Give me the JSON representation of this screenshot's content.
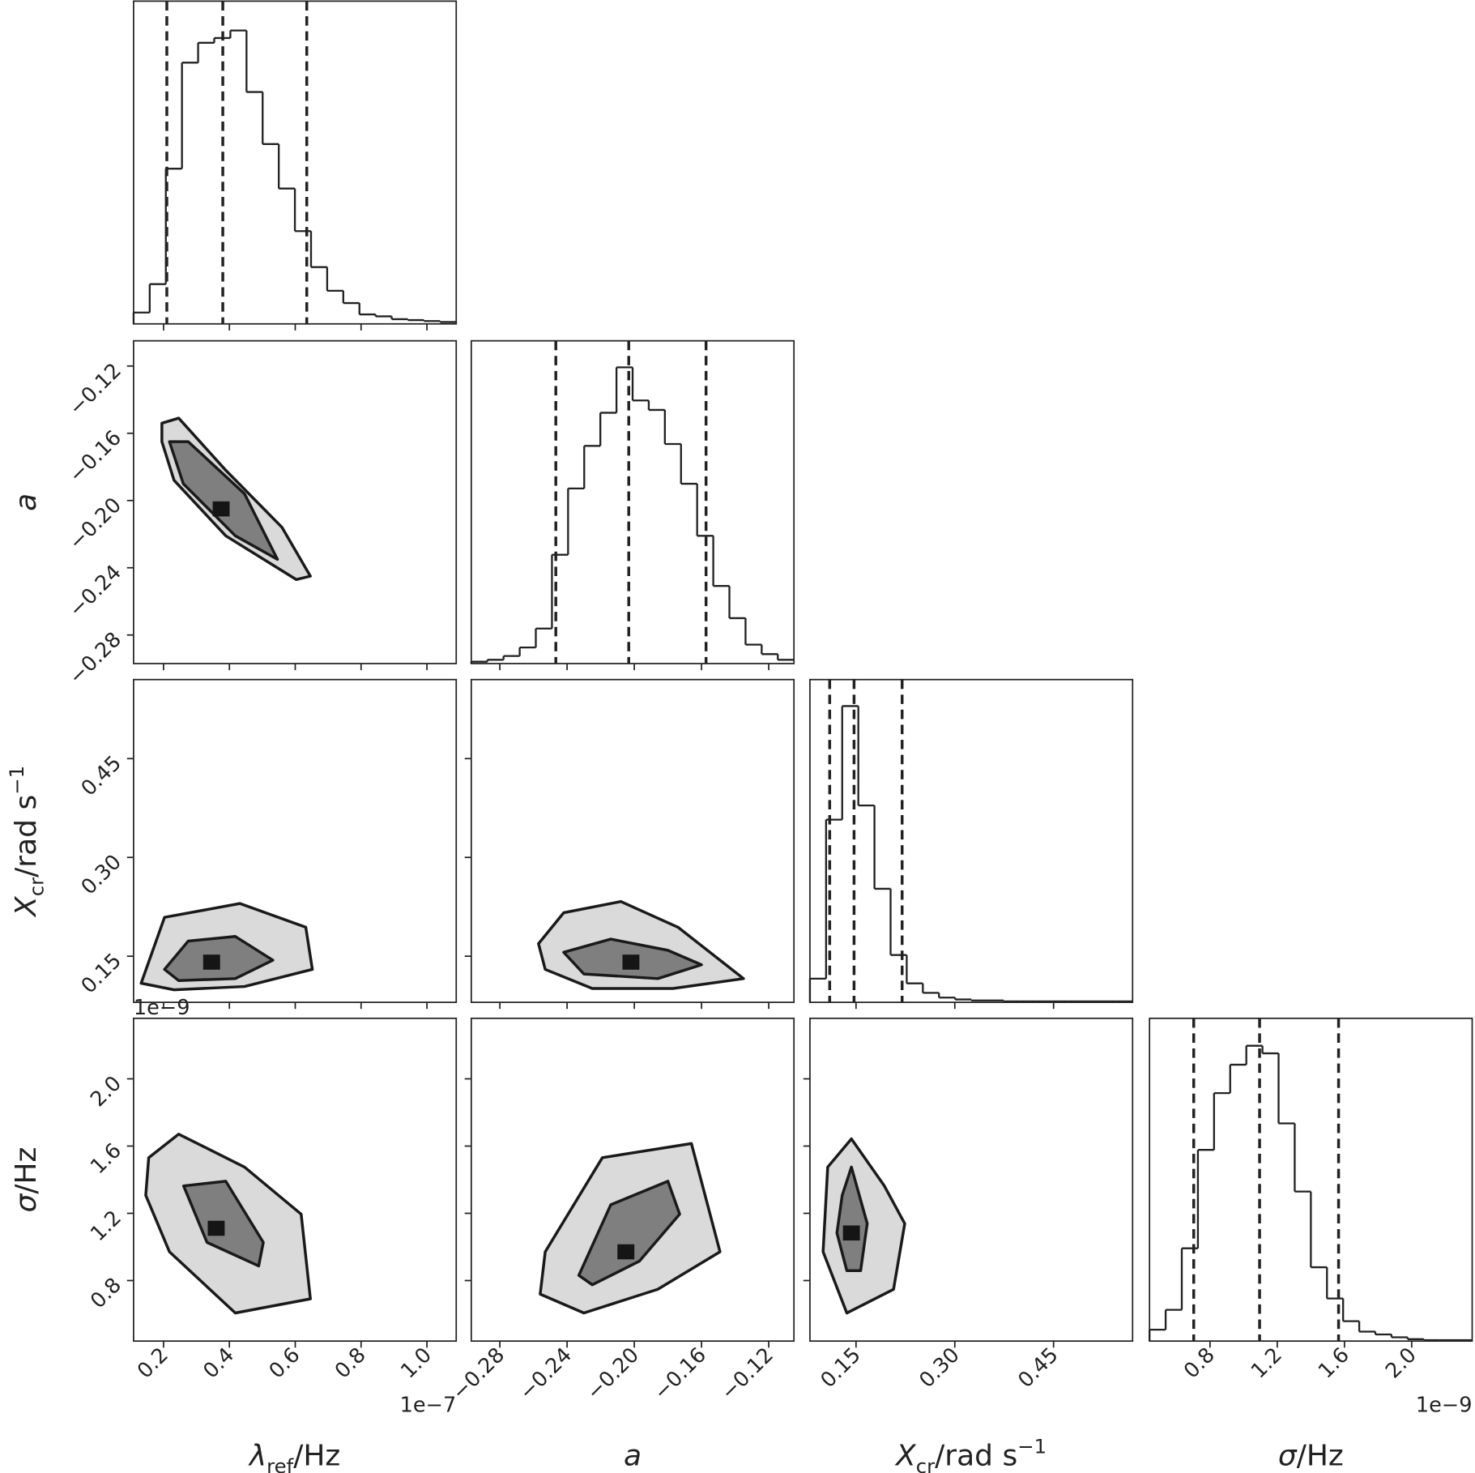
{
  "chart_data": {
    "type": "corner",
    "hist_ylim": [
      0,
      341
    ],
    "parameters": [
      {
        "symbol": "λ",
        "sub": "ref",
        "unit": "/Hz",
        "offset": "1e−7",
        "lim": [
          0.109,
          1.089
        ],
        "ticks": [
          0.2,
          0.4,
          0.6,
          0.8,
          {
            "value": 1,
            "label": "1.0"
          }
        ],
        "bins": [
          0.109,
          0.158,
          0.207,
          0.256,
          0.305,
          0.354,
          0.403,
          0.452,
          0.501,
          0.55,
          0.599,
          0.648,
          0.697,
          0.746,
          0.795,
          0.844,
          0.893,
          0.942,
          0.991,
          1.04,
          1.089
        ],
        "counts": [
          12,
          42,
          164,
          276,
          297,
          302,
          310,
          245,
          190,
          143,
          98,
          60,
          35,
          22,
          10,
          8,
          5,
          4,
          3,
          2
        ],
        "quantiles": [
          0.21,
          0.38,
          0.635
        ]
      },
      {
        "symbol": "a",
        "lim": [
          -0.297,
          -0.105
        ],
        "ticks": [
          {
            "value": -0.28,
            "label": "−0.28"
          },
          {
            "value": -0.24,
            "label": "−0.24"
          },
          {
            "value": -0.2,
            "label": "−0.20"
          },
          {
            "value": -0.16,
            "label": "−0.16"
          },
          {
            "value": -0.12,
            "label": "−0.12"
          }
        ],
        "bins": [
          -0.297,
          -0.2874,
          -0.2778,
          -0.2682,
          -0.2586,
          -0.249,
          -0.2394,
          -0.2298,
          -0.2202,
          -0.2106,
          -0.201,
          -0.1914,
          -0.1818,
          -0.1722,
          -0.1626,
          -0.153,
          -0.1434,
          -0.1338,
          -0.1242,
          -0.1146,
          -0.105
        ],
        "counts": [
          2,
          4,
          8,
          17,
          37,
          115,
          185,
          230,
          265,
          313,
          278,
          268,
          232,
          190,
          135,
          82,
          48,
          20,
          10,
          4
        ],
        "quantiles": [
          -0.2467,
          -0.2033,
          -0.1573
        ]
      },
      {
        "symbol": "X",
        "sub": "cr",
        "unit": "/rad s",
        "sup": "−1",
        "lim": [
          0.08,
          0.57
        ],
        "ticks": [
          0.15,
          {
            "value": 0.3,
            "label": "0.30"
          },
          0.45
        ],
        "bins": [
          0.08,
          0.1045,
          0.129,
          0.1535,
          0.178,
          0.2025,
          0.227,
          0.2515,
          0.276,
          0.3005,
          0.325,
          0.3495,
          0.374,
          0.3985,
          0.423,
          0.4475,
          0.472,
          0.4965,
          0.521,
          0.5455,
          0.57
        ],
        "counts": [
          25,
          193,
          313,
          208,
          120,
          50,
          20,
          10,
          5,
          3,
          2,
          2,
          1,
          1,
          1,
          1,
          1,
          1,
          1,
          1
        ],
        "quantiles": [
          0.11,
          0.147,
          0.22
        ]
      },
      {
        "symbol": "σ",
        "unit": "/Hz",
        "offset": "1e−9",
        "lim": [
          0.44,
          2.36
        ],
        "ticks": [
          0.8,
          1.2,
          1.6,
          {
            "value": 2,
            "label": "2.0"
          }
        ],
        "bins": [
          0.44,
          0.536,
          0.632,
          0.728,
          0.824,
          0.92,
          1.016,
          1.112,
          1.208,
          1.304,
          1.4,
          1.496,
          1.592,
          1.688,
          1.784,
          1.88,
          1.976,
          2.072,
          2.168,
          2.264,
          2.36
        ],
        "counts": [
          12,
          33,
          98,
          202,
          262,
          292,
          312,
          304,
          230,
          158,
          78,
          45,
          21,
          10,
          7,
          4,
          2,
          1,
          1,
          1
        ],
        "quantiles": [
          0.703,
          1.095,
          1.565
        ]
      }
    ],
    "pairs": [
      {
        "contours": [
          {
            "x": [
              0.195,
              0.246,
              0.389,
              0.56,
              0.646,
              0.603,
              0.389,
              0.232,
              0.195
            ],
            "y": [
              -0.154,
              -0.151,
              -0.182,
              -0.216,
              -0.245,
              -0.247,
              -0.221,
              -0.188,
              -0.165
            ]
          },
          {
            "x": [
              0.218,
              0.275,
              0.446,
              0.546,
              0.418,
              0.26
            ],
            "y": [
              -0.165,
              -0.165,
              -0.196,
              -0.235,
              -0.221,
              -0.19
            ]
          }
        ],
        "mode": {
          "x": 0.375,
          "y": -0.205
        }
      },
      {
        "contours": [
          {
            "x": [
              0.132,
              0.203,
              0.432,
              0.632,
              0.652,
              0.446,
              0.232
            ],
            "y": [
              0.109,
              0.209,
              0.23,
              0.194,
              0.13,
              0.104,
              0.099
            ]
          },
          {
            "x": [
              0.203,
              0.275,
              0.418,
              0.532,
              0.418,
              0.246
            ],
            "y": [
              0.13,
              0.173,
              0.18,
              0.144,
              0.116,
              0.113
            ]
          }
        ],
        "mode": {
          "x": 0.346,
          "y": 0.141
        }
      },
      {
        "contours": [
          {
            "x": [
              -0.257,
              -0.242,
              -0.208,
              -0.174,
              -0.135,
              -0.177,
              -0.225,
              -0.253
            ],
            "y": [
              0.169,
              0.216,
              0.233,
              0.194,
              0.116,
              0.101,
              0.101,
              0.13
            ]
          },
          {
            "x": [
              -0.242,
              -0.214,
              -0.18,
              -0.16,
              -0.186,
              -0.23
            ],
            "y": [
              0.156,
              0.176,
              0.159,
              0.137,
              0.116,
              0.123
            ]
          }
        ],
        "mode": {
          "x": -0.202,
          "y": 0.141
        }
      },
      {
        "contours": [
          {
            "x": [
              0.155,
              0.246,
              0.446,
              0.618,
              0.646,
              0.418,
              0.218,
              0.146
            ],
            "y": [
              1.531,
              1.671,
              1.475,
              1.195,
              0.691,
              0.607,
              0.971,
              1.307
            ]
          },
          {
            "x": [
              0.261,
              0.389,
              0.503,
              0.489,
              0.332
            ],
            "y": [
              1.363,
              1.391,
              1.027,
              0.887,
              1.027
            ]
          }
        ],
        "mode": {
          "x": 0.36,
          "y": 1.111
        }
      },
      {
        "contours": [
          {
            "x": [
              -0.253,
              -0.219,
              -0.166,
              -0.149,
              -0.186,
              -0.23,
              -0.256
            ],
            "y": [
              0.971,
              1.531,
              1.615,
              0.971,
              0.748,
              0.607,
              0.719
            ]
          },
          {
            "x": [
              -0.233,
              -0.214,
              -0.18,
              -0.173,
              -0.197,
              -0.225
            ],
            "y": [
              0.831,
              1.251,
              1.391,
              1.195,
              0.915,
              0.775
            ]
          }
        ],
        "mode": {
          "x": -0.205,
          "y": 0.971
        }
      },
      {
        "contours": [
          {
            "x": [
              0.107,
              0.143,
              0.193,
              0.224,
              0.207,
              0.136,
              0.1
            ],
            "y": [
              1.475,
              1.643,
              1.363,
              1.139,
              0.748,
              0.607,
              0.971
            ]
          },
          {
            "x": [
              0.129,
              0.143,
              0.167,
              0.157,
              0.136,
              0.121
            ],
            "y": [
              1.307,
              1.475,
              1.139,
              0.859,
              0.859,
              1.083
            ]
          }
        ],
        "mode": {
          "x": 0.143,
          "y": 1.083
        }
      }
    ]
  }
}
